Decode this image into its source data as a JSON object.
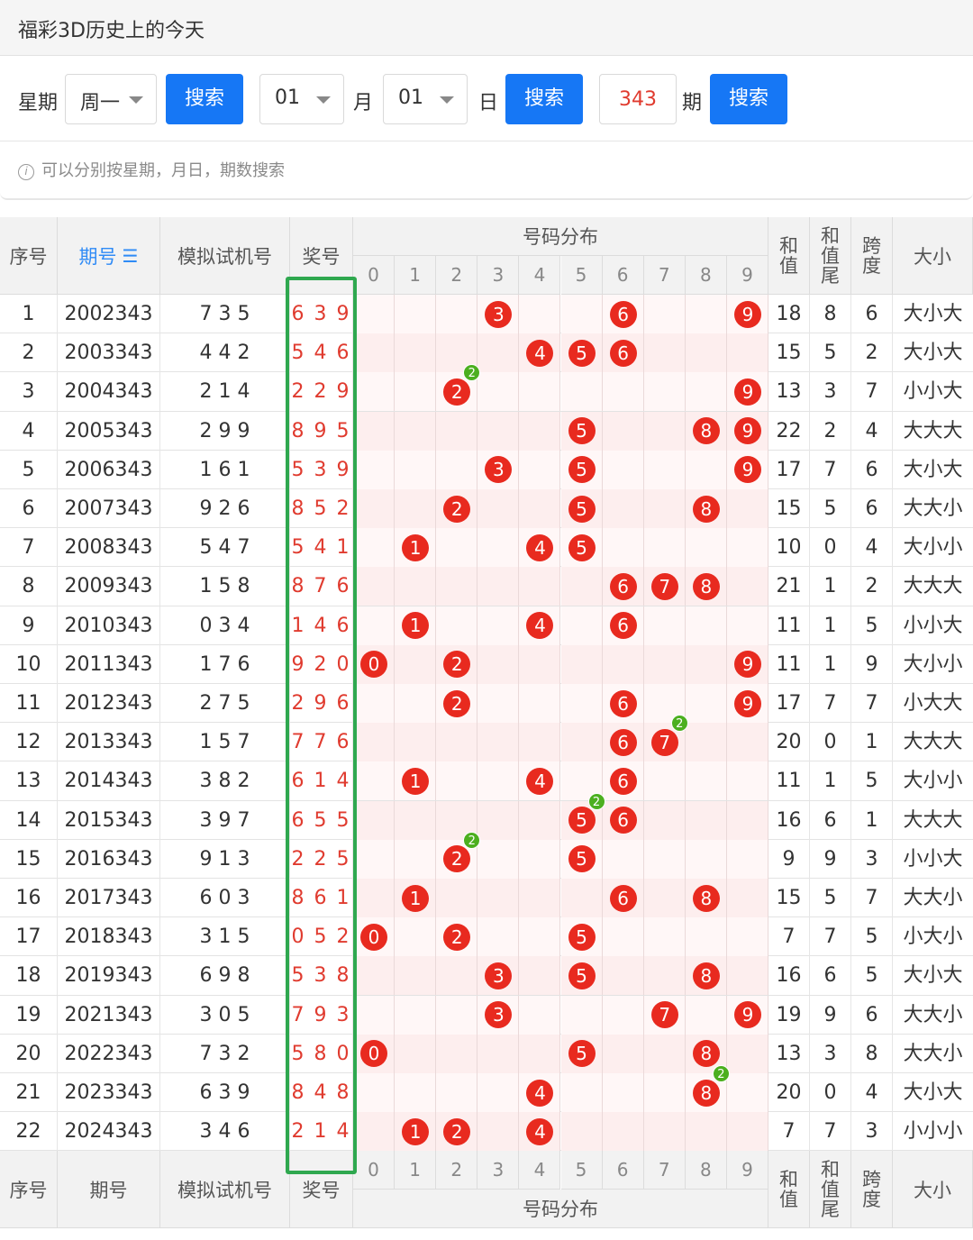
{
  "title": "福彩3D历史上的今天",
  "search": {
    "weekday_label": "星期",
    "weekday_value": "周一",
    "search_label": "搜索",
    "month_value": "01",
    "month_label": "月",
    "day_value": "01",
    "day_label": "日",
    "issue_value": "343",
    "issue_label": "期",
    "hint": "可以分别按星期，月日，期数搜索"
  },
  "table": {
    "headers": {
      "index": "序号",
      "issue": "期号",
      "sort_icon": "sort-icon",
      "sim": "模拟试机号",
      "prize": "奖号",
      "dist": "号码分布",
      "sum": "和值",
      "sum_tail": "和值尾",
      "span": "跨度",
      "size": "大小"
    },
    "digits": [
      "0",
      "1",
      "2",
      "3",
      "4",
      "5",
      "6",
      "7",
      "8",
      "9"
    ],
    "rows": [
      {
        "idx": "1",
        "issue": "2002343",
        "sim": "7 3 5",
        "prize": "6 3 9",
        "sum": "18",
        "tail": "8",
        "span": "6",
        "size": "大小大",
        "digits": [
          3,
          6,
          9
        ],
        "dup": null
      },
      {
        "idx": "2",
        "issue": "2003343",
        "sim": "4 4 2",
        "prize": "5 4 6",
        "sum": "15",
        "tail": "5",
        "span": "2",
        "size": "大小大",
        "digits": [
          4,
          5,
          6
        ],
        "dup": null
      },
      {
        "idx": "3",
        "issue": "2004343",
        "sim": "2 1 4",
        "prize": "2 2 9",
        "sum": "13",
        "tail": "3",
        "span": "7",
        "size": "小小大",
        "digits": [
          2,
          9
        ],
        "dup": 2
      },
      {
        "idx": "4",
        "issue": "2005343",
        "sim": "2 9 9",
        "prize": "8 9 5",
        "sum": "22",
        "tail": "2",
        "span": "4",
        "size": "大大大",
        "digits": [
          5,
          8,
          9
        ],
        "dup": null
      },
      {
        "idx": "5",
        "issue": "2006343",
        "sim": "1 6 1",
        "prize": "5 3 9",
        "sum": "17",
        "tail": "7",
        "span": "6",
        "size": "大小大",
        "digits": [
          3,
          5,
          9
        ],
        "dup": null
      },
      {
        "idx": "6",
        "issue": "2007343",
        "sim": "9 2 6",
        "prize": "8 5 2",
        "sum": "15",
        "tail": "5",
        "span": "6",
        "size": "大大小",
        "digits": [
          2,
          5,
          8
        ],
        "dup": null
      },
      {
        "idx": "7",
        "issue": "2008343",
        "sim": "5 4 7",
        "prize": "5 4 1",
        "sum": "10",
        "tail": "0",
        "span": "4",
        "size": "大小小",
        "digits": [
          1,
          4,
          5
        ],
        "dup": null
      },
      {
        "idx": "8",
        "issue": "2009343",
        "sim": "1 5 8",
        "prize": "8 7 6",
        "sum": "21",
        "tail": "1",
        "span": "2",
        "size": "大大大",
        "digits": [
          6,
          7,
          8
        ],
        "dup": null
      },
      {
        "idx": "9",
        "issue": "2010343",
        "sim": "0 3 4",
        "prize": "1 4 6",
        "sum": "11",
        "tail": "1",
        "span": "5",
        "size": "小小大",
        "digits": [
          1,
          4,
          6
        ],
        "dup": null
      },
      {
        "idx": "10",
        "issue": "2011343",
        "sim": "1 7 6",
        "prize": "9 2 0",
        "sum": "11",
        "tail": "1",
        "span": "9",
        "size": "大小小",
        "digits": [
          0,
          2,
          9
        ],
        "dup": null
      },
      {
        "idx": "11",
        "issue": "2012343",
        "sim": "2 7 5",
        "prize": "2 9 6",
        "sum": "17",
        "tail": "7",
        "span": "7",
        "size": "小大大",
        "digits": [
          2,
          6,
          9
        ],
        "dup": null
      },
      {
        "idx": "12",
        "issue": "2013343",
        "sim": "1 5 7",
        "prize": "7 7 6",
        "sum": "20",
        "tail": "0",
        "span": "1",
        "size": "大大大",
        "digits": [
          6,
          7
        ],
        "dup": 7
      },
      {
        "idx": "13",
        "issue": "2014343",
        "sim": "3 8 2",
        "prize": "6 1 4",
        "sum": "11",
        "tail": "1",
        "span": "5",
        "size": "大小小",
        "digits": [
          1,
          4,
          6
        ],
        "dup": null
      },
      {
        "idx": "14",
        "issue": "2015343",
        "sim": "3 9 7",
        "prize": "6 5 5",
        "sum": "16",
        "tail": "6",
        "span": "1",
        "size": "大大大",
        "digits": [
          5,
          6
        ],
        "dup": 5
      },
      {
        "idx": "15",
        "issue": "2016343",
        "sim": "9 1 3",
        "prize": "2 2 5",
        "sum": "9",
        "tail": "9",
        "span": "3",
        "size": "小小大",
        "digits": [
          2,
          5
        ],
        "dup": 2
      },
      {
        "idx": "16",
        "issue": "2017343",
        "sim": "6 0 3",
        "prize": "8 6 1",
        "sum": "15",
        "tail": "5",
        "span": "7",
        "size": "大大小",
        "digits": [
          1,
          6,
          8
        ],
        "dup": null
      },
      {
        "idx": "17",
        "issue": "2018343",
        "sim": "3 1 5",
        "prize": "0 5 2",
        "sum": "7",
        "tail": "7",
        "span": "5",
        "size": "小大小",
        "digits": [
          0,
          2,
          5
        ],
        "dup": null
      },
      {
        "idx": "18",
        "issue": "2019343",
        "sim": "6 9 8",
        "prize": "5 3 8",
        "sum": "16",
        "tail": "6",
        "span": "5",
        "size": "大小大",
        "digits": [
          3,
          5,
          8
        ],
        "dup": null
      },
      {
        "idx": "19",
        "issue": "2021343",
        "sim": "3 0 5",
        "prize": "7 9 3",
        "sum": "19",
        "tail": "9",
        "span": "6",
        "size": "大大小",
        "digits": [
          3,
          7,
          9
        ],
        "dup": null
      },
      {
        "idx": "20",
        "issue": "2022343",
        "sim": "7 3 2",
        "prize": "5 8 0",
        "sum": "13",
        "tail": "3",
        "span": "8",
        "size": "大大小",
        "digits": [
          0,
          5,
          8
        ],
        "dup": null
      },
      {
        "idx": "21",
        "issue": "2023343",
        "sim": "6 3 9",
        "prize": "8 4 8",
        "sum": "20",
        "tail": "0",
        "span": "4",
        "size": "大小大",
        "digits": [
          4,
          8
        ],
        "dup": 8
      },
      {
        "idx": "22",
        "issue": "2024343",
        "sim": "3 4 6",
        "prize": "2 1 4",
        "sum": "7",
        "tail": "7",
        "span": "3",
        "size": "小小小",
        "digits": [
          1,
          2,
          4
        ],
        "dup": null
      }
    ],
    "dup_badge": "2"
  },
  "colors": {
    "accent": "#1677f5",
    "ball": "#e82a1f",
    "badge": "#4caf1f",
    "highlight": "#2fa84f"
  }
}
